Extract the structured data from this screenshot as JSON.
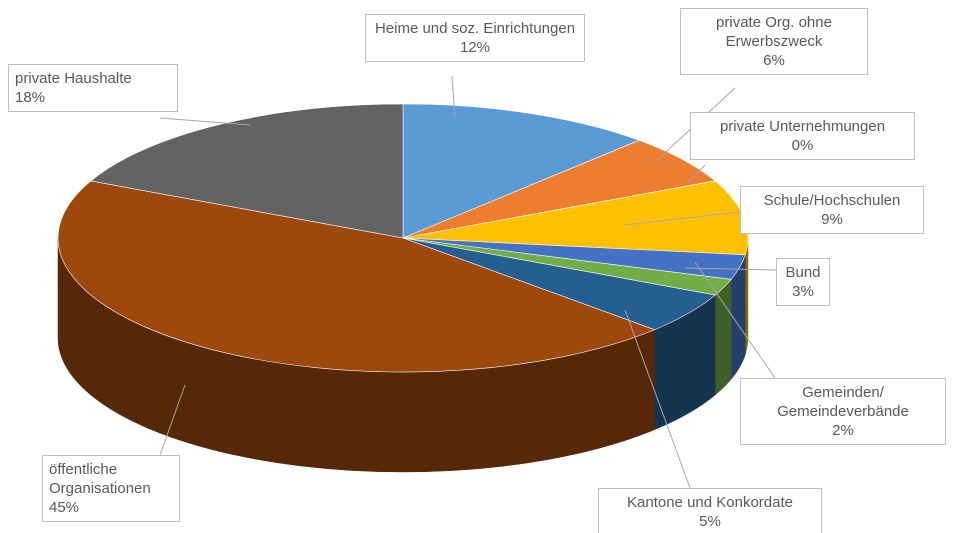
{
  "chart_data": {
    "type": "pie3d",
    "categories": [
      "Heime und soz. Einrichtungen",
      "private Org. ohne Erwerbszweck",
      "private Unternehmungen",
      "Schule/Hochschulen",
      "Bund",
      "Gemeinden/\nGemeindeverbände",
      "Kantone und Konkordate",
      "öffentliche Organisationen",
      "private Haushalte"
    ],
    "values": [
      12,
      6,
      0,
      9,
      3,
      2,
      5,
      45,
      18
    ],
    "value_labels": [
      "12%",
      "6%",
      "0%",
      "9%",
      "3%",
      "2%",
      "5%",
      "45%",
      "18%"
    ],
    "colors": [
      "#5b9bd5",
      "#ed7d31",
      "#a5a5a5",
      "#ffc000",
      "#4472c4",
      "#70ad47",
      "#255e91",
      "#9e480e",
      "#636363"
    ]
  }
}
